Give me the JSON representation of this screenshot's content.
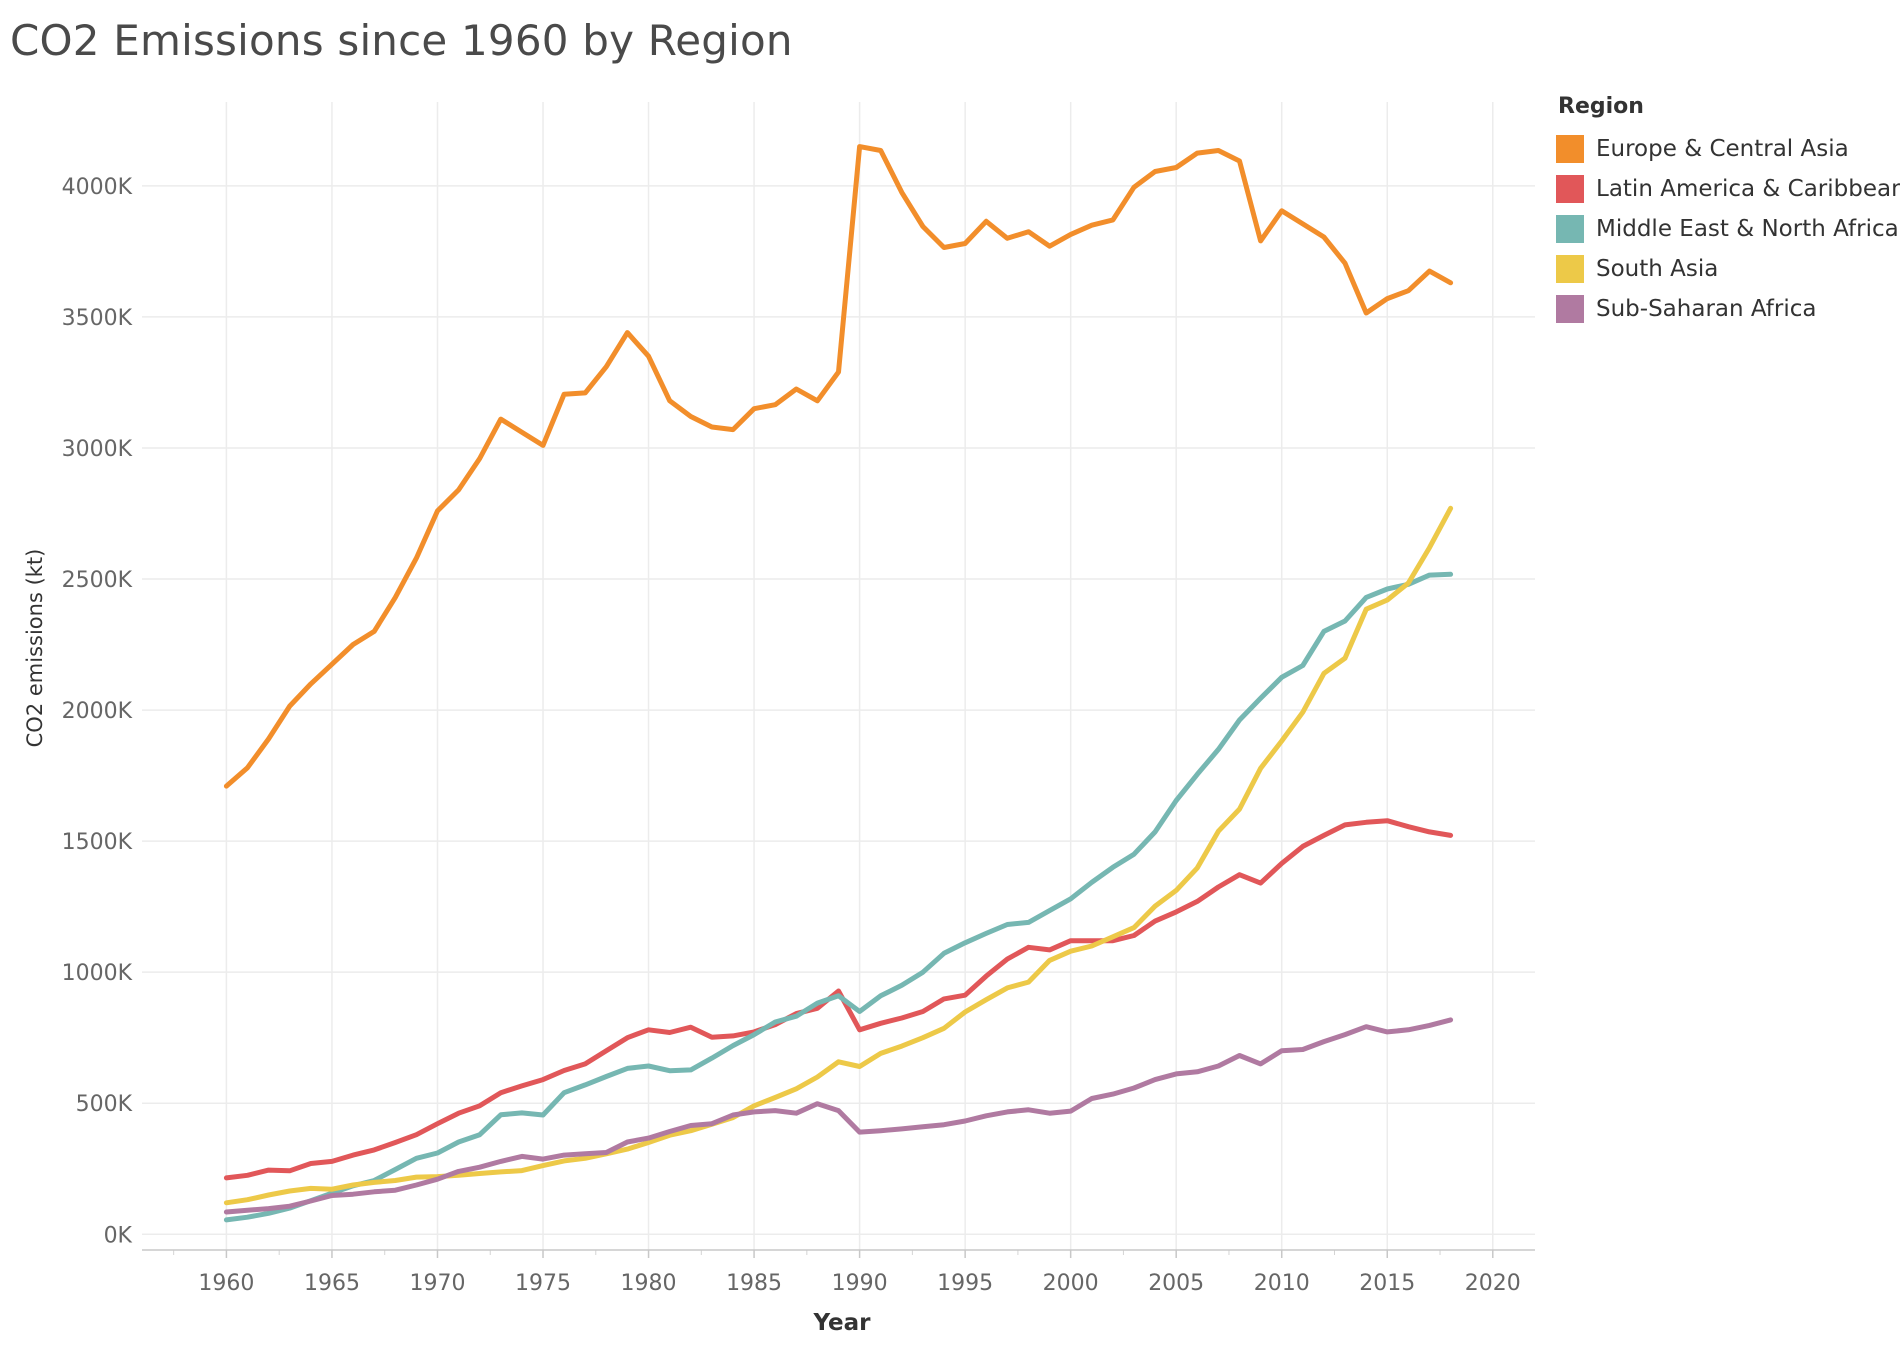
{
  "title": "CO2 Emissions since 1960 by Region",
  "chart_data": {
    "type": "line",
    "title": "CO2 Emissions since 1960 by Region",
    "xlabel": "Year",
    "ylabel": "CO2 emissions (kt)",
    "xlim": [
      1956,
      2022
    ],
    "ylim": [
      -60000,
      4320000
    ],
    "x_ticks": [
      1960,
      1965,
      1970,
      1975,
      1980,
      1985,
      1990,
      1995,
      2000,
      2005,
      2010,
      2015,
      2020
    ],
    "x_tick_labels": [
      "1960",
      "1965",
      "1970",
      "1975",
      "1980",
      "1985",
      "1990",
      "1995",
      "2000",
      "2005",
      "2010",
      "2015",
      "2020"
    ],
    "y_ticks": [
      0,
      500000,
      1000000,
      1500000,
      2000000,
      2500000,
      3000000,
      3500000,
      4000000
    ],
    "y_tick_labels": [
      "0K",
      "500K",
      "1000K",
      "1500K",
      "2000K",
      "2500K",
      "3000K",
      "3500K",
      "4000K"
    ],
    "grid": true,
    "legend_title": "Region",
    "legend_position": "right",
    "x": [
      1960,
      1961,
      1962,
      1963,
      1964,
      1965,
      1966,
      1967,
      1968,
      1969,
      1970,
      1971,
      1972,
      1973,
      1974,
      1975,
      1976,
      1977,
      1978,
      1979,
      1980,
      1981,
      1982,
      1983,
      1984,
      1985,
      1986,
      1987,
      1988,
      1989,
      1990,
      1991,
      1992,
      1993,
      1994,
      1995,
      1996,
      1997,
      1998,
      1999,
      2000,
      2001,
      2002,
      2003,
      2004,
      2005,
      2006,
      2007,
      2008,
      2009,
      2010,
      2011,
      2012,
      2013,
      2014,
      2015,
      2016,
      2017,
      2018
    ],
    "series": [
      {
        "name": "Europe & Central Asia",
        "color": "#f28e2b",
        "values": [
          1710000,
          1780000,
          1890000,
          2015000,
          2100000,
          2175000,
          2250000,
          2300000,
          2430000,
          2580000,
          2760000,
          2840000,
          2960000,
          3110000,
          3060000,
          3010000,
          3205000,
          3210000,
          3310000,
          3440000,
          3350000,
          3180000,
          3120000,
          3080000,
          3070000,
          3150000,
          3165000,
          3225000,
          3180000,
          3290000,
          4150000,
          4135000,
          3975000,
          3845000,
          3765000,
          3780000,
          3865000,
          3800000,
          3825000,
          3770000,
          3815000,
          3850000,
          3870000,
          3995000,
          4055000,
          4070000,
          4125000,
          4135000,
          4095000,
          3790000,
          3905000,
          3855000,
          3805000,
          3705000,
          3515000,
          3570000,
          3600000,
          3675000,
          3630000
        ]
      },
      {
        "name": "Latin America & Caribbean",
        "color": "#e15759",
        "values": [
          215000,
          225000,
          245000,
          242000,
          270000,
          278000,
          302000,
          322000,
          350000,
          380000,
          422000,
          462000,
          490000,
          540000,
          566000,
          590000,
          625000,
          650000,
          700000,
          750000,
          780000,
          770000,
          790000,
          752000,
          757000,
          772000,
          800000,
          842000,
          862000,
          928000,
          780000,
          805000,
          825000,
          850000,
          898000,
          912000,
          985000,
          1050000,
          1095000,
          1085000,
          1120000,
          1120000,
          1120000,
          1140000,
          1195000,
          1230000,
          1270000,
          1325000,
          1372000,
          1340000,
          1415000,
          1480000,
          1522000,
          1562000,
          1572000,
          1578000,
          1555000,
          1535000,
          1522000
        ]
      },
      {
        "name": "Middle East & North Africa",
        "color": "#76b7b2",
        "values": [
          55000,
          65000,
          80000,
          100000,
          128000,
          157000,
          185000,
          205000,
          247000,
          290000,
          310000,
          352000,
          380000,
          456000,
          463000,
          455000,
          540000,
          570000,
          602000,
          633000,
          642000,
          624000,
          627000,
          672000,
          720000,
          762000,
          810000,
          832000,
          882000,
          910000,
          850000,
          910000,
          950000,
          1000000,
          1072000,
          1112000,
          1148000,
          1182000,
          1190000,
          1235000,
          1280000,
          1343000,
          1400000,
          1450000,
          1535000,
          1655000,
          1755000,
          1850000,
          1962000,
          2045000,
          2125000,
          2170000,
          2300000,
          2340000,
          2430000,
          2462000,
          2480000,
          2515000,
          2518000
        ]
      },
      {
        "name": "South Asia",
        "color": "#edc948",
        "values": [
          120000,
          132000,
          150000,
          165000,
          175000,
          172000,
          188000,
          198000,
          205000,
          218000,
          220000,
          225000,
          232000,
          238000,
          243000,
          262000,
          280000,
          290000,
          307000,
          325000,
          350000,
          378000,
          395000,
          420000,
          445000,
          490000,
          522000,
          555000,
          600000,
          658000,
          640000,
          690000,
          718000,
          750000,
          786000,
          848000,
          895000,
          940000,
          962000,
          1045000,
          1080000,
          1100000,
          1135000,
          1170000,
          1252000,
          1312000,
          1398000,
          1538000,
          1622000,
          1778000,
          1882000,
          1992000,
          2140000,
          2198000,
          2385000,
          2420000,
          2485000,
          2620000,
          2770000
        ]
      },
      {
        "name": "Sub-Saharan Africa",
        "color": "#b07aa1",
        "values": [
          85000,
          92000,
          98000,
          107000,
          127000,
          148000,
          153000,
          162000,
          168000,
          188000,
          210000,
          240000,
          256000,
          278000,
          297000,
          287000,
          302000,
          307000,
          312000,
          352000,
          367000,
          392000,
          415000,
          422000,
          455000,
          467000,
          472000,
          462000,
          498000,
          472000,
          390000,
          395000,
          402000,
          410000,
          418000,
          432000,
          452000,
          467000,
          475000,
          462000,
          470000,
          518000,
          535000,
          558000,
          590000,
          612000,
          620000,
          642000,
          682000,
          650000,
          700000,
          705000,
          735000,
          762000,
          792000,
          772000,
          780000,
          797000,
          818000
        ]
      }
    ]
  }
}
